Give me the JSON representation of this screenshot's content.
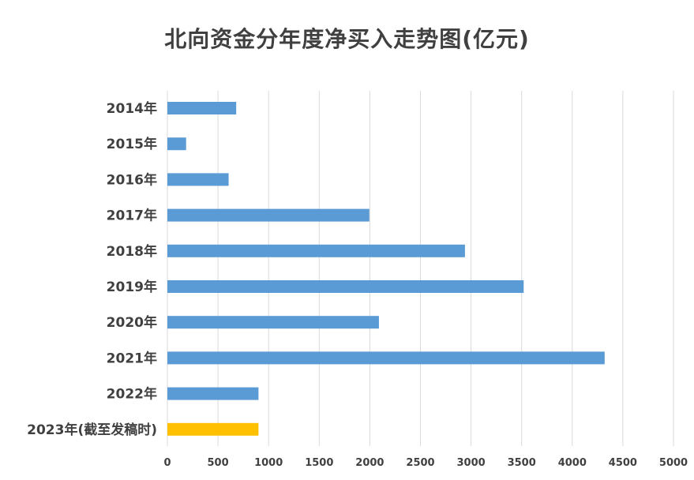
{
  "chart_data": {
    "type": "bar",
    "orientation": "horizontal",
    "title": "北向资金分年度净买入走势图(亿元)",
    "categories": [
      "2014年",
      "2015年",
      "2016年",
      "2017年",
      "2018年",
      "2019年",
      "2020年",
      "2021年",
      "2022年",
      "2023年(截至发稿时)"
    ],
    "series": [
      {
        "values": [
          680,
          185,
          605,
          1995,
          2940,
          3520,
          2090,
          4320,
          900,
          900
        ]
      }
    ],
    "bar_colors": [
      "#5b9bd5",
      "#5b9bd5",
      "#5b9bd5",
      "#5b9bd5",
      "#5b9bd5",
      "#5b9bd5",
      "#5b9bd5",
      "#5b9bd5",
      "#5b9bd5",
      "#ffc000"
    ],
    "xlim": [
      0,
      5000
    ],
    "xticks": [
      "0",
      "500",
      "1000",
      "1500",
      "2000",
      "2500",
      "3000",
      "3500",
      "4000",
      "4500",
      "5000"
    ],
    "grid": true,
    "gridline_color": "#d9d9d9"
  }
}
